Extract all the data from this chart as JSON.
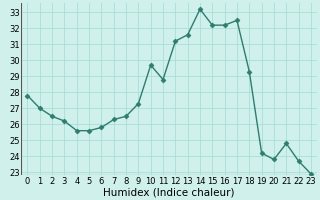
{
  "x": [
    0,
    1,
    2,
    3,
    4,
    5,
    6,
    7,
    8,
    9,
    10,
    11,
    12,
    13,
    14,
    15,
    16,
    17,
    18,
    19,
    20,
    21,
    22,
    23
  ],
  "y": [
    27.8,
    27.0,
    26.5,
    26.2,
    25.6,
    25.6,
    25.8,
    26.3,
    26.5,
    27.3,
    29.7,
    28.8,
    31.2,
    31.6,
    33.2,
    32.2,
    32.2,
    32.5,
    29.3,
    24.2,
    23.8,
    24.8,
    23.7,
    22.9
  ],
  "line_color": "#2e7d6e",
  "marker": "D",
  "marker_size": 2.5,
  "bg_color": "#cff0eb",
  "grid_color": "#aaddd8",
  "xlabel": "Humidex (Indice chaleur)",
  "ylim": [
    22.8,
    33.6
  ],
  "yticks": [
    23,
    24,
    25,
    26,
    27,
    28,
    29,
    30,
    31,
    32,
    33
  ],
  "xticks": [
    0,
    1,
    2,
    3,
    4,
    5,
    6,
    7,
    8,
    9,
    10,
    11,
    12,
    13,
    14,
    15,
    16,
    17,
    18,
    19,
    20,
    21,
    22,
    23
  ],
  "tick_label_fontsize": 6,
  "xlabel_fontsize": 7.5,
  "line_width": 1.0
}
